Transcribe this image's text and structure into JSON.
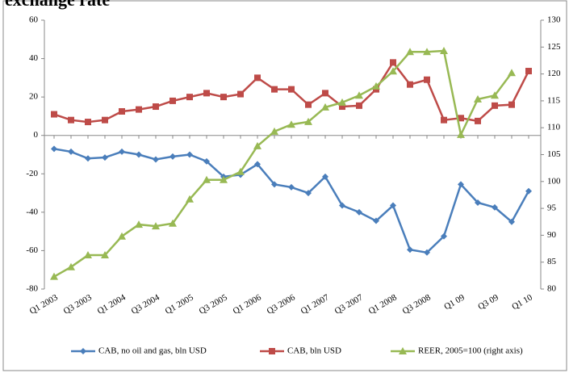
{
  "chart_data": {
    "type": "line",
    "title": "exchange rate",
    "categories": [
      "Q1 2003",
      null,
      "Q3 2003",
      null,
      "Q1 2004",
      null,
      "Q3 2004",
      null,
      "Q1 2005",
      null,
      "Q3 2005",
      null,
      "Q1 2006",
      null,
      "Q3 2006",
      null,
      "Q1 2007",
      null,
      "Q3 2007",
      null,
      "Q1 2008",
      null,
      "Q3 2008",
      null,
      "Q1 09",
      null,
      "Q3 09",
      null,
      "Q1 10"
    ],
    "series": [
      {
        "name": "CAB, no oil and gas, bln USD",
        "color": "#4a7ebb",
        "marker": "diamond",
        "values": [
          -7,
          -8.5,
          -12,
          -11.5,
          -8.5,
          -10,
          -12.5,
          -11,
          -10,
          -13.5,
          -21.5,
          -20.5,
          -15,
          -25.5,
          -27,
          -30,
          -21.5,
          -36.5,
          -40,
          -44.5,
          -36.5,
          -59.5,
          -61,
          -52.5,
          -25.5,
          -35,
          -37.5,
          -45,
          -29
        ]
      },
      {
        "name": "CAB, bln USD",
        "color": "#be4b48",
        "marker": "square",
        "values": [
          11,
          8,
          7,
          8,
          12.5,
          13.5,
          15,
          18,
          20,
          22,
          20,
          21.5,
          30,
          24,
          24,
          16,
          22,
          15,
          15.5,
          24,
          38,
          26.5,
          29,
          8,
          9,
          7.5,
          15.5,
          16,
          33.5
        ]
      },
      {
        "name": "REER, 2005=100 (right axis)",
        "color": "#98b954",
        "marker": "triangle",
        "axis": "y2",
        "values": [
          82.3,
          84.1,
          86.3,
          86.3,
          89.8,
          92,
          91.7,
          92.2,
          96.7,
          100.3,
          100.3,
          101.8,
          106.6,
          109.3,
          110.6,
          111.1,
          113.8,
          114.7,
          116,
          117.7,
          120.5,
          124.1,
          124.1,
          124.3,
          108.7,
          115.3,
          116,
          120.2,
          null
        ]
      }
    ],
    "ylim": [
      -80,
      60
    ],
    "yticks": [
      -80,
      -60,
      -40,
      -20,
      0,
      20,
      40,
      60
    ],
    "y2lim": [
      80,
      130
    ],
    "y2ticks": [
      80,
      85,
      90,
      95,
      100,
      105,
      110,
      115,
      120,
      125,
      130
    ],
    "legend": "bottom"
  }
}
